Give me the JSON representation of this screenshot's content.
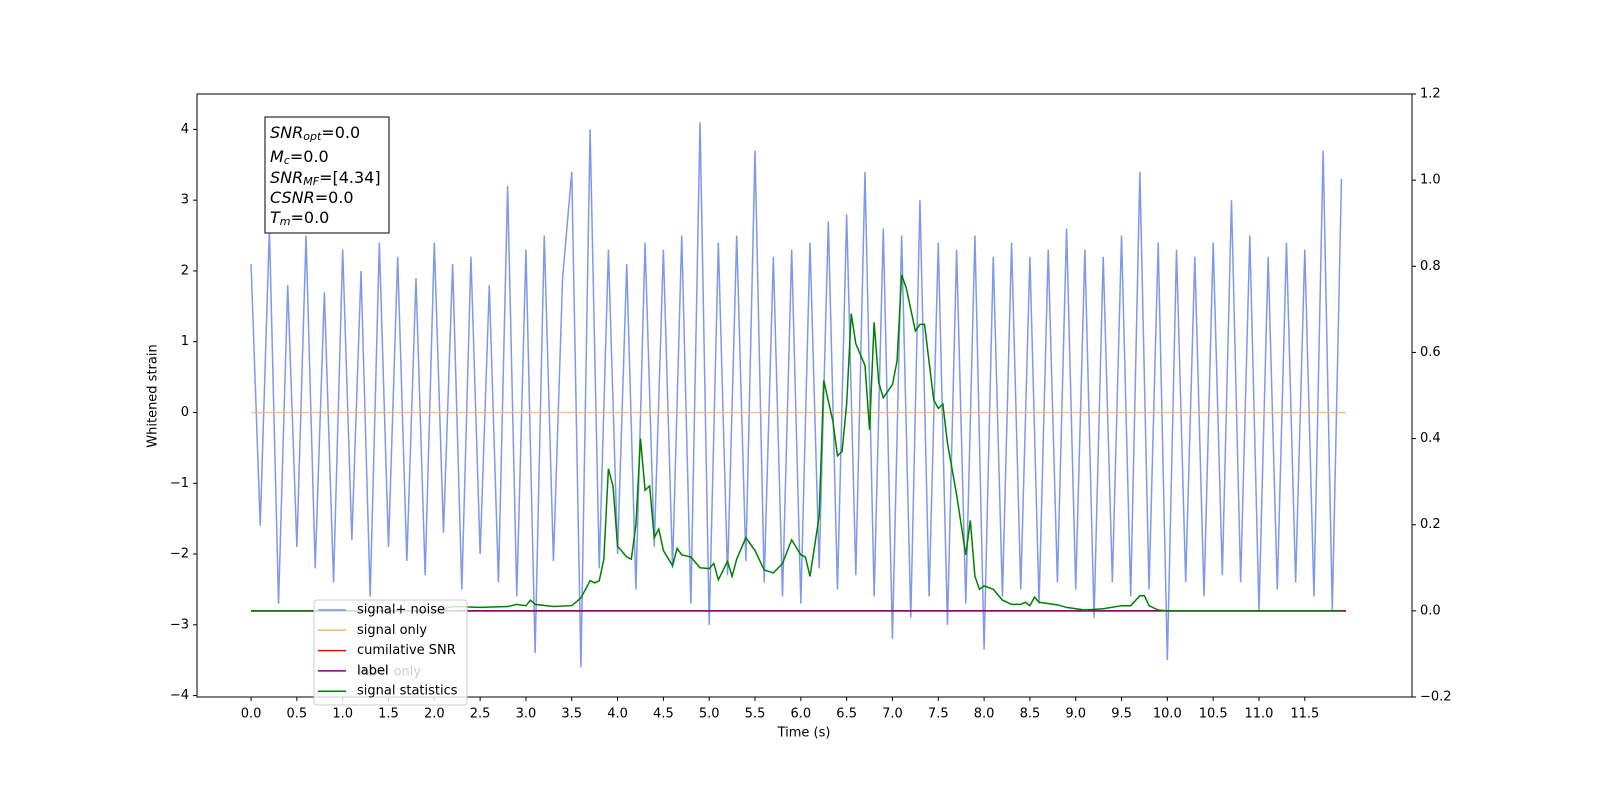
{
  "chart_data": {
    "type": "line",
    "xlabel": "Time (s)",
    "ylabel": "Whitened strain",
    "xlim": [
      -0.59,
      12.67
    ],
    "ylim": [
      -4.02,
      4.5
    ],
    "y2lim": [
      -0.2,
      1.2
    ],
    "xticks": [
      {
        "value": 0,
        "label": "0.0"
      },
      0.5,
      {
        "value": 1,
        "label": "1.0"
      },
      1.5,
      {
        "value": 2,
        "label": "2.0"
      },
      2.5,
      {
        "value": 3,
        "label": "3.0"
      },
      3.5,
      {
        "value": 4,
        "label": "4.0"
      },
      4.5,
      {
        "value": 5,
        "label": "5.0"
      },
      5.5,
      {
        "value": 6,
        "label": "6.0"
      },
      6.5,
      {
        "value": 7,
        "label": "7.0"
      },
      7.5,
      {
        "value": 8,
        "label": "8.0"
      },
      8.5,
      {
        "value": 9,
        "label": "9.0"
      },
      9.5,
      {
        "value": 10,
        "label": "10.0"
      },
      10.5,
      {
        "value": 11,
        "label": "11.0"
      },
      11.5
    ],
    "yticks": [
      {
        "value": -4,
        "label": "−4"
      },
      {
        "value": -3,
        "label": "−3"
      },
      {
        "value": -2,
        "label": "−2"
      },
      {
        "value": -1,
        "label": "−1"
      },
      0,
      1,
      2,
      3,
      4
    ],
    "y2ticks": [
      {
        "value": -0.2,
        "label": "−0.2"
      },
      {
        "value": 0,
        "label": "0.0"
      },
      0.2,
      0.4,
      0.6,
      0.8,
      {
        "value": 1,
        "label": "1.0"
      },
      1.2
    ],
    "annotation": [
      {
        "main": "SNR",
        "sub": "opt",
        "rest": "=0.0"
      },
      {
        "main": "M",
        "sub": "c",
        "rest": "=0.0"
      },
      {
        "main": "SNR",
        "sub": "MF",
        "rest": "=[4.34]"
      },
      {
        "main": "CSNR",
        "rest": "=0.0"
      },
      {
        "main": "T",
        "sub": "m",
        "rest": "=0.0"
      }
    ],
    "hidden_text": "label only",
    "legend": "lower left",
    "series": [
      {
        "name": "signal+ noise",
        "color": "#7893e8",
        "x": [
          0,
          0.1,
          0.2,
          0.3,
          0.4,
          0.5,
          0.6,
          0.7,
          0.8,
          0.9,
          1,
          1.1,
          1.2,
          1.3,
          1.4,
          1.5,
          1.6,
          1.7,
          1.8,
          1.9,
          2,
          2.1,
          2.2,
          2.3,
          2.4,
          2.5,
          2.6,
          2.7,
          2.8,
          2.9,
          3,
          3.1,
          3.2,
          3.3,
          3.4,
          3.5,
          3.6,
          3.7,
          3.8,
          3.9,
          4,
          4.1,
          4.2,
          4.3,
          4.4,
          4.5,
          4.6,
          4.7,
          4.8,
          4.9,
          5,
          5.1,
          5.2,
          5.3,
          5.4,
          5.5,
          5.6,
          5.7,
          5.8,
          5.9,
          6,
          6.1,
          6.2,
          6.3,
          6.4,
          6.5,
          6.6,
          6.7,
          6.8,
          6.9,
          7,
          7.1,
          7.2,
          7.3,
          7.4,
          7.5,
          7.6,
          7.7,
          7.8,
          7.9,
          8,
          8.1,
          8.2,
          8.3,
          8.4,
          8.5,
          8.6,
          8.7,
          8.8,
          8.9,
          9,
          9.1,
          9.2,
          9.3,
          9.4,
          9.5,
          9.6,
          9.7,
          9.8,
          9.9,
          10,
          10.1,
          10.2,
          10.3,
          10.4,
          10.5,
          10.6,
          10.7,
          10.8,
          10.9,
          11,
          11.1,
          11.2,
          11.3,
          11.4,
          11.5,
          11.6,
          11.7,
          11.8,
          11.9
        ],
        "values": [
          2.1,
          -1.6,
          2.6,
          -2.7,
          1.8,
          -1.9,
          2.5,
          -2.2,
          1.7,
          -2.4,
          2.3,
          -1.8,
          2.0,
          -2.6,
          2.4,
          -1.9,
          2.2,
          -2.1,
          1.9,
          -2.3,
          2.4,
          -1.7,
          2.1,
          -2.5,
          2.2,
          -2.0,
          1.8,
          -2.4,
          3.2,
          -2.6,
          2.3,
          -3.4,
          2.5,
          -2.1,
          1.9,
          3.4,
          -3.6,
          4.0,
          -2.2,
          2.3,
          -2.0,
          2.1,
          -2.5,
          2.4,
          -1.9,
          2.3,
          -2.2,
          2.5,
          -2.7,
          4.1,
          -3.0,
          2.4,
          -2.3,
          2.5,
          -2.1,
          3.7,
          -2.4,
          2.2,
          -2.6,
          2.3,
          -2.7,
          2.4,
          -2.2,
          2.7,
          -2.5,
          2.8,
          -2.3,
          3.4,
          -2.6,
          2.6,
          -3.2,
          2.5,
          -2.9,
          3.0,
          -2.6,
          2.4,
          -3.0,
          2.3,
          -2.7,
          2.5,
          -3.35,
          2.2,
          -2.6,
          2.4,
          -2.5,
          2.2,
          -2.7,
          2.3,
          -2.4,
          2.6,
          -2.5,
          2.3,
          -2.9,
          2.2,
          -2.4,
          2.5,
          -2.6,
          3.4,
          -2.5,
          2.4,
          -3.5,
          2.3,
          -2.4,
          2.2,
          -2.6,
          2.4,
          -2.3,
          3.0,
          -2.4,
          2.5,
          -2.8,
          2.2,
          -2.5,
          2.4,
          -2.4,
          2.3,
          -2.6,
          3.7,
          -2.8,
          3.3
        ]
      },
      {
        "name": "signal only",
        "color": "#f5b27a",
        "x": [
          0,
          11.95
        ],
        "values": [
          0,
          0
        ]
      },
      {
        "name": "cumilative SNR",
        "color": "#ff0000",
        "axis": "y2",
        "x": [
          0,
          11.95
        ],
        "values": [
          0,
          0
        ]
      },
      {
        "name": "label",
        "color": "#800080",
        "axis": "y2",
        "x": [
          0,
          11.95
        ],
        "values": [
          0,
          0
        ]
      },
      {
        "name": "signal statistics",
        "color": "#008000",
        "axis": "y2",
        "x": [
          0,
          2.0,
          2.2,
          2.5,
          2.8,
          2.9,
          3.0,
          3.05,
          3.1,
          3.3,
          3.5,
          3.6,
          3.7,
          3.75,
          3.8,
          3.85,
          3.9,
          3.95,
          4.0,
          4.1,
          4.15,
          4.2,
          4.25,
          4.3,
          4.35,
          4.4,
          4.45,
          4.5,
          4.6,
          4.65,
          4.7,
          4.8,
          4.9,
          5.0,
          5.05,
          5.1,
          5.2,
          5.25,
          5.3,
          5.4,
          5.5,
          5.6,
          5.7,
          5.8,
          5.9,
          6.0,
          6.05,
          6.1,
          6.2,
          6.25,
          6.35,
          6.4,
          6.45,
          6.5,
          6.55,
          6.6,
          6.7,
          6.75,
          6.8,
          6.85,
          6.9,
          7.0,
          7.05,
          7.1,
          7.15,
          7.25,
          7.3,
          7.35,
          7.45,
          7.5,
          7.55,
          7.6,
          7.7,
          7.8,
          7.85,
          7.9,
          7.95,
          8.0,
          8.1,
          8.2,
          8.3,
          8.4,
          8.45,
          8.5,
          8.55,
          8.6,
          8.8,
          8.9,
          9.1,
          9.3,
          9.5,
          9.6,
          9.7,
          9.75,
          9.8,
          9.9,
          10.0,
          11.9
        ],
        "values": [
          0,
          0,
          0.01,
          0.008,
          0.01,
          0.015,
          0.012,
          0.025,
          0.015,
          0.01,
          0.012,
          0.03,
          0.07,
          0.065,
          0.07,
          0.12,
          0.33,
          0.29,
          0.15,
          0.125,
          0.12,
          0.2,
          0.4,
          0.28,
          0.29,
          0.17,
          0.19,
          0.14,
          0.105,
          0.145,
          0.13,
          0.125,
          0.1,
          0.098,
          0.11,
          0.072,
          0.115,
          0.08,
          0.12,
          0.17,
          0.14,
          0.095,
          0.088,
          0.11,
          0.165,
          0.13,
          0.125,
          0.08,
          0.22,
          0.535,
          0.44,
          0.36,
          0.37,
          0.48,
          0.69,
          0.62,
          0.57,
          0.42,
          0.67,
          0.53,
          0.495,
          0.525,
          0.58,
          0.78,
          0.75,
          0.65,
          0.665,
          0.665,
          0.49,
          0.47,
          0.48,
          0.39,
          0.27,
          0.13,
          0.21,
          0.08,
          0.05,
          0.058,
          0.05,
          0.025,
          0.015,
          0.015,
          0.02,
          0.012,
          0.032,
          0.02,
          0.014,
          0.008,
          0.002,
          0.005,
          0.012,
          0.012,
          0.035,
          0.035,
          0.012,
          0.002,
          0,
          0
        ]
      }
    ]
  }
}
